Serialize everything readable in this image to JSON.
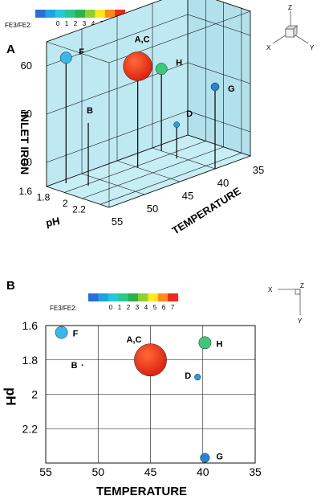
{
  "colorbar": {
    "label": "FE3/FE2:",
    "ticks": [
      "0",
      "1",
      "2",
      "3",
      "4",
      "5",
      "6",
      "7"
    ],
    "colors": [
      "#2a6fd6",
      "#1ea1e6",
      "#23c8d8",
      "#2cc78a",
      "#2bb24a",
      "#8fcf2e",
      "#ffe81e",
      "#ff8a1e",
      "#ee2a1a"
    ]
  },
  "axis_triad": {
    "x": "X",
    "y": "Y",
    "z": "Z"
  },
  "chart_data": [
    {
      "panel": "A",
      "type": "scatter3d",
      "zlabel": "INLET IRON",
      "xlabel": "TEMPERATURE",
      "ylabel": "pH",
      "zticks": [
        "40",
        "50",
        "60"
      ],
      "temp_ticks": [
        "35",
        "40",
        "45",
        "50",
        "55"
      ],
      "ph_ticks": [
        "1.6",
        "1.8",
        "2",
        "2.2"
      ],
      "zlim": [
        35,
        65
      ],
      "xlim": [
        35,
        55
      ],
      "ylim": [
        1.6,
        2.3
      ],
      "point_colors": {
        "F": "#39b8e8",
        "A,C": "#ee3a16",
        "H": "#3cc878",
        "G": "#2a82d8",
        "D": "#2a9ae0"
      },
      "points": [
        {
          "label": "F",
          "temp": 53,
          "ph": 1.66,
          "iron": 61,
          "ratio": 1.5,
          "size": 2.0
        },
        {
          "label": "B",
          "temp": 52,
          "ph": 1.83,
          "iron": 48,
          "ratio": 1,
          "size": 0.2
        },
        {
          "label": "A,C",
          "temp": 45,
          "ph": 1.83,
          "iron": 56,
          "ratio": 7,
          "size": 5.0
        },
        {
          "label": "H",
          "temp": 40,
          "ph": 1.7,
          "iron": 52,
          "ratio": 2.5,
          "size": 2.0
        },
        {
          "label": "D",
          "temp": 40.5,
          "ph": 1.91,
          "iron": 42,
          "ratio": 1,
          "size": 1.0
        },
        {
          "label": "G",
          "temp": 40,
          "ph": 2.3,
          "iron": 52,
          "ratio": 0.5,
          "size": 1.4
        }
      ]
    },
    {
      "panel": "B",
      "type": "scatter",
      "xlabel": "TEMPERATURE",
      "ylabel": "pH",
      "xticks": [
        "55",
        "50",
        "45",
        "40",
        "35"
      ],
      "yticks": [
        "1.6",
        "1.8",
        "2",
        "2.2"
      ],
      "xlim": [
        55,
        35
      ],
      "ylim": [
        1.6,
        2.4
      ],
      "point_colors": {
        "F": "#39b8e8",
        "A,C": "#ee3a16",
        "H": "#3cc878",
        "G": "#2a82d8",
        "D": "#2a9ae0"
      },
      "points": [
        {
          "label": "F",
          "temp": 53.5,
          "ph": 1.64,
          "size": 1.6
        },
        {
          "label": "B",
          "temp": 51.5,
          "ph": 1.83,
          "size": 0.1
        },
        {
          "label": "A,C",
          "temp": 45,
          "ph": 1.8,
          "size": 4.2
        },
        {
          "label": "H",
          "temp": 39.8,
          "ph": 1.7,
          "size": 1.6
        },
        {
          "label": "D",
          "temp": 40.5,
          "ph": 1.9,
          "size": 0.8
        },
        {
          "label": "G",
          "temp": 39.8,
          "ph": 2.37,
          "size": 1.2
        }
      ]
    }
  ]
}
